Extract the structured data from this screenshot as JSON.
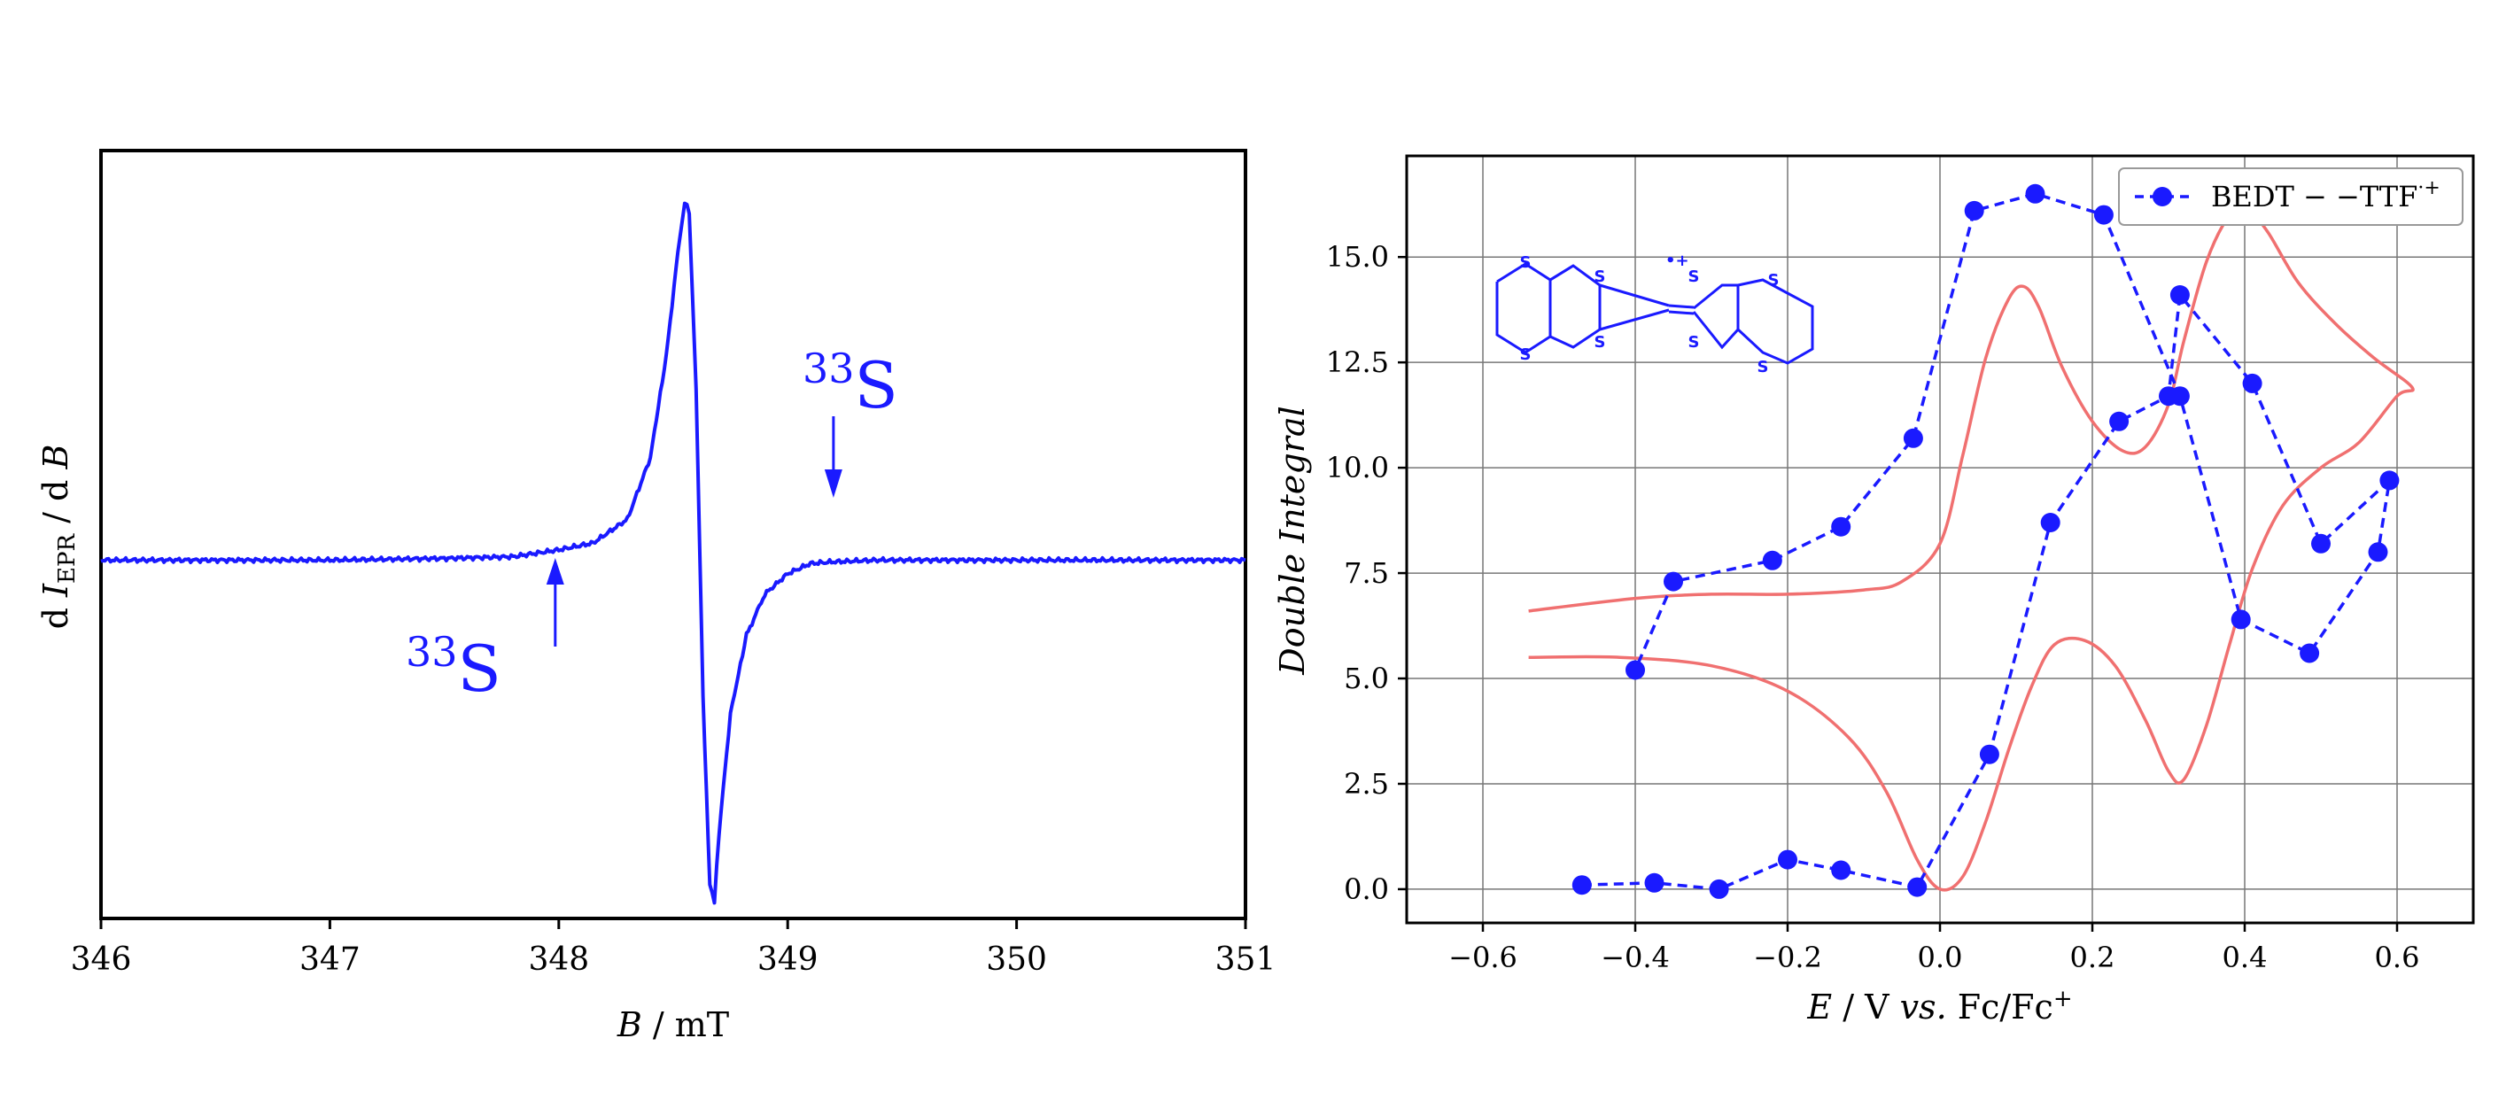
{
  "chart_data": [
    {
      "type": "line",
      "panel": "left",
      "title": "",
      "xlabel": {
        "italic": "B",
        "rest": " / mT"
      },
      "ylabel": {
        "pre": "d ",
        "italic": "I",
        "sub": "EPR",
        "post": " / d ",
        "italic2": "B"
      },
      "xlim": [
        346,
        351
      ],
      "ylim": [
        -1.05,
        1.2
      ],
      "y_ticks_shown": false,
      "grid": false,
      "x_ticks": [
        "346",
        "347",
        "348",
        "349",
        "350",
        "351"
      ],
      "line_color": "#1a1aff",
      "series": [
        {
          "description_values": "derivative EPR signal",
          "x": [
            346.0,
            346.5,
            347.0,
            347.5,
            347.8,
            348.0,
            348.15,
            348.3,
            348.4,
            348.47,
            348.52,
            348.55,
            348.57,
            348.6,
            348.63,
            348.66,
            348.68,
            348.7,
            348.75,
            348.82,
            348.9,
            349.0,
            349.1,
            349.2,
            349.4,
            349.7,
            350.0,
            350.5,
            351.0
          ],
          "y": [
            0.0,
            0.0,
            0.0,
            0.005,
            0.01,
            0.03,
            0.05,
            0.12,
            0.3,
            0.6,
            0.9,
            1.05,
            1.02,
            0.5,
            -0.4,
            -0.95,
            -1.0,
            -0.8,
            -0.45,
            -0.22,
            -0.1,
            -0.04,
            -0.01,
            -0.005,
            0.0,
            0.0,
            0.0,
            0.0,
            0.0
          ]
        }
      ],
      "annotations": [
        {
          "text": "S",
          "superscript": "33",
          "arrow": "up",
          "at_x": 348.0
        },
        {
          "text": "S",
          "superscript": "33",
          "arrow": "down",
          "at_x": 349.2
        }
      ]
    },
    {
      "type": "line",
      "panel": "right",
      "title": "",
      "xlabel": {
        "italic": "E",
        "mid": " / V ",
        "italic2": "vs.",
        "rest": " Fc/Fc",
        "sup": "+"
      },
      "ylabel": {
        "text": "Double  Integral",
        "italic": true
      },
      "xlim": [
        -0.7,
        0.7
      ],
      "ylim": [
        -0.8,
        17.4
      ],
      "grid": true,
      "x_ticks": [
        "−0.6",
        "−0.4",
        "−0.2",
        "0.0",
        "0.2",
        "0.4",
        "0.6"
      ],
      "x_tick_values": [
        -0.6,
        -0.4,
        -0.2,
        0.0,
        0.2,
        0.4,
        0.6
      ],
      "y_ticks": [
        "0.0",
        "2.5",
        "5.0",
        "7.5",
        "10.0",
        "12.5",
        "15.0"
      ],
      "y_tick_values": [
        0,
        2.5,
        5,
        7.5,
        10,
        12.5,
        15
      ],
      "legend": {
        "placement": "top-right",
        "label": "BEDT − −TTF",
        "label_sup": "·+"
      },
      "molecule_label": "•+",
      "molecule_atom": "S",
      "series": [
        {
          "name": "BEDT − −TTF·+",
          "color": "#1a1aff",
          "marker": "circle",
          "linestyle": "dashed",
          "x": [
            -0.47,
            -0.375,
            -0.29,
            -0.2,
            -0.13,
            -0.03,
            0.065,
            0.145,
            0.235,
            0.3,
            0.315,
            0.41,
            0.5,
            0.59,
            0.575,
            0.485,
            0.395,
            0.315,
            0.215,
            0.125,
            0.045,
            -0.035,
            -0.13,
            -0.22,
            -0.35,
            -0.4
          ],
          "y": [
            0.1,
            0.15,
            0.0,
            0.7,
            0.45,
            0.05,
            3.2,
            8.7,
            11.1,
            11.7,
            14.1,
            12.0,
            8.2,
            9.7,
            8.0,
            5.6,
            6.4,
            11.7,
            16.0,
            16.5,
            16.1,
            10.7,
            8.6,
            7.8,
            7.3,
            5.2
          ]
        },
        {
          "name": "",
          "color": "#f07070",
          "marker": "none",
          "linestyle": "solid",
          "x": [
            -0.54,
            -0.4,
            -0.3,
            -0.2,
            -0.1,
            -0.05,
            0.0,
            0.03,
            0.06,
            0.09,
            0.11,
            0.13,
            0.16,
            0.2,
            0.24,
            0.27,
            0.3,
            0.32,
            0.35,
            0.38,
            0.4,
            0.43,
            0.47,
            0.52,
            0.57,
            0.62,
            0.6,
            0.55,
            0.5,
            0.45,
            0.41,
            0.38,
            0.35,
            0.32,
            0.3,
            0.27,
            0.23,
            0.19,
            0.15,
            0.12,
            0.09,
            0.06,
            0.03,
            0.0,
            -0.03,
            -0.07,
            -0.12,
            -0.2,
            -0.3,
            -0.42,
            -0.54
          ],
          "y": [
            6.6,
            6.9,
            7.0,
            7.0,
            7.1,
            7.3,
            8.2,
            10.3,
            12.6,
            14.0,
            14.3,
            13.8,
            12.4,
            11.1,
            10.4,
            10.5,
            11.5,
            13.0,
            14.9,
            16.0,
            16.2,
            15.6,
            14.4,
            13.4,
            12.6,
            11.9,
            11.7,
            10.6,
            10.0,
            9.1,
            7.6,
            5.8,
            3.9,
            2.6,
            2.8,
            4.0,
            5.3,
            5.9,
            5.8,
            4.8,
            3.3,
            1.6,
            0.3,
            0.0,
            0.7,
            2.3,
            3.6,
            4.7,
            5.3,
            5.5,
            5.5
          ]
        }
      ]
    }
  ]
}
